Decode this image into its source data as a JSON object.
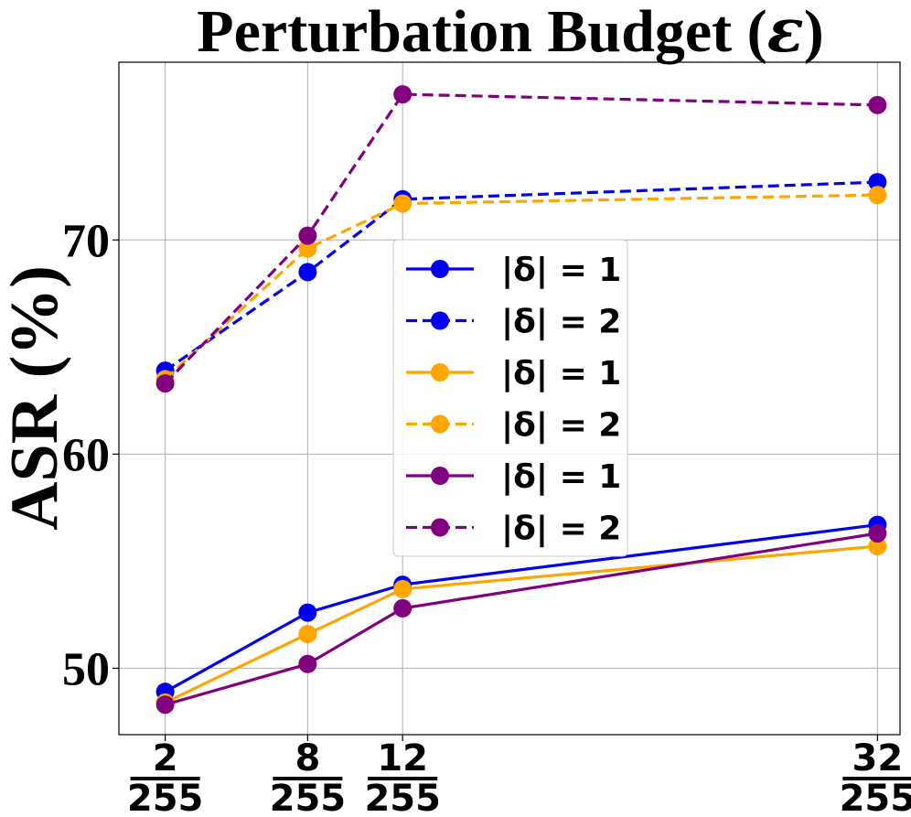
{
  "chart_data": {
    "type": "line",
    "title_prefix": "Perturbation Budget (",
    "title_symbol": "ε",
    "title_suffix": ")",
    "ylabel": "ASR (%)",
    "x": [
      2,
      8,
      12,
      32
    ],
    "xtick_labels": [
      {
        "num": "2",
        "den": "255"
      },
      {
        "num": "8",
        "den": "255"
      },
      {
        "num": "12",
        "den": "255"
      },
      {
        "num": "32",
        "den": "255"
      }
    ],
    "xlim": [
      0.05,
      32.95
    ],
    "ylim": [
      46.9,
      78.3
    ],
    "yticks": [
      50,
      60,
      70
    ],
    "grid": true,
    "legend_position": "center",
    "series": [
      {
        "name": "|δ| = 1",
        "color": "#0000ee",
        "dash": "solid",
        "values": [
          48.9,
          52.6,
          53.9,
          56.7
        ]
      },
      {
        "name": "|δ| = 2",
        "color": "#0000ee",
        "dash": "dashed",
        "values": [
          63.9,
          68.5,
          71.9,
          72.7
        ]
      },
      {
        "name": "|δ| = 1",
        "color": "#ffa500",
        "dash": "solid",
        "values": [
          48.4,
          51.6,
          53.7,
          55.7
        ]
      },
      {
        "name": "|δ| = 2",
        "color": "#ffa500",
        "dash": "dashed",
        "values": [
          63.5,
          69.6,
          71.7,
          72.1
        ]
      },
      {
        "name": "|δ| = 1",
        "color": "#800080",
        "dash": "solid",
        "values": [
          48.3,
          50.2,
          52.8,
          56.3
        ]
      },
      {
        "name": "|δ| = 2",
        "color": "#800080",
        "dash": "dashed",
        "values": [
          63.3,
          70.2,
          76.8,
          76.3
        ]
      }
    ]
  }
}
